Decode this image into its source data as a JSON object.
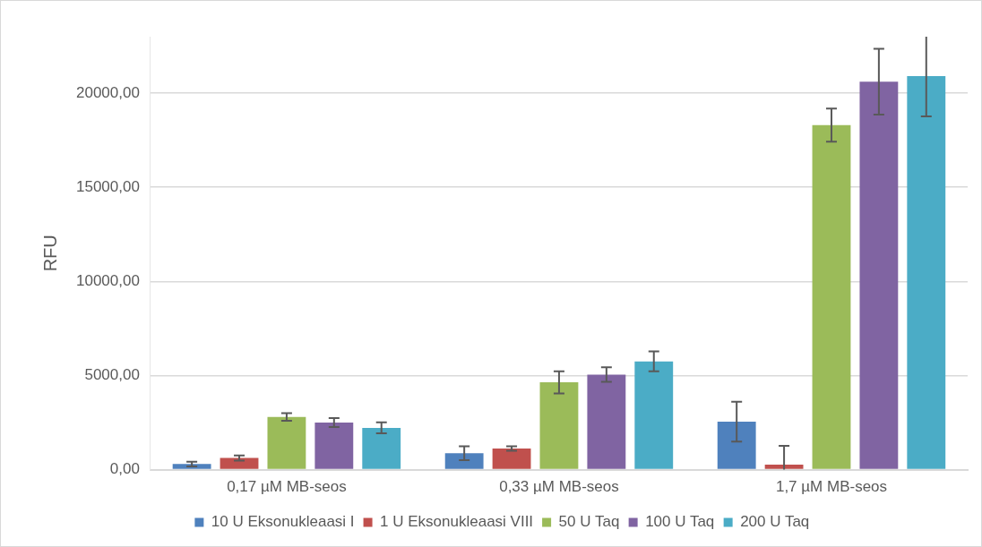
{
  "chart_data": {
    "type": "bar",
    "ylabel": "RFU",
    "categories": [
      "0,17 µM MB-seos",
      "0,33 µM MB-seos",
      "1,7 µM MB-seos"
    ],
    "series": [
      {
        "name": "10 U Eksonukleaasi I",
        "color": "#4f81bd",
        "values": [
          300,
          870,
          2550
        ],
        "errors": [
          125,
          370,
          1060
        ]
      },
      {
        "name": "1 U Eksonukleaasi VIII",
        "color": "#c0504d",
        "values": [
          620,
          1120,
          270
        ],
        "errors": [
          135,
          120,
          [
            0,
            1270
          ]
        ]
      },
      {
        "name": "50 U Taq",
        "color": "#9bbb59",
        "values": [
          2800,
          4640,
          18300
        ],
        "errors": [
          200,
          590,
          880
        ]
      },
      {
        "name": "100 U Taq",
        "color": "#8064a2",
        "values": [
          2500,
          5050,
          20610
        ],
        "errors": [
          240,
          390,
          1750
        ]
      },
      {
        "name": "200 U Taq",
        "color": "#4bacc6",
        "values": [
          2220,
          5750,
          20910
        ],
        "errors": [
          290,
          530,
          [
            18770,
            23000
          ]
        ]
      }
    ],
    "ylim": [
      0,
      23000
    ],
    "yticks": [
      {
        "value": 0,
        "label": "0,00"
      },
      {
        "value": 5000,
        "label": "5000,00"
      },
      {
        "value": 10000,
        "label": "10000,00"
      },
      {
        "value": 15000,
        "label": "15000,00"
      },
      {
        "value": 20000,
        "label": "20000,00"
      }
    ],
    "grid": "y",
    "legend": "bottom"
  }
}
